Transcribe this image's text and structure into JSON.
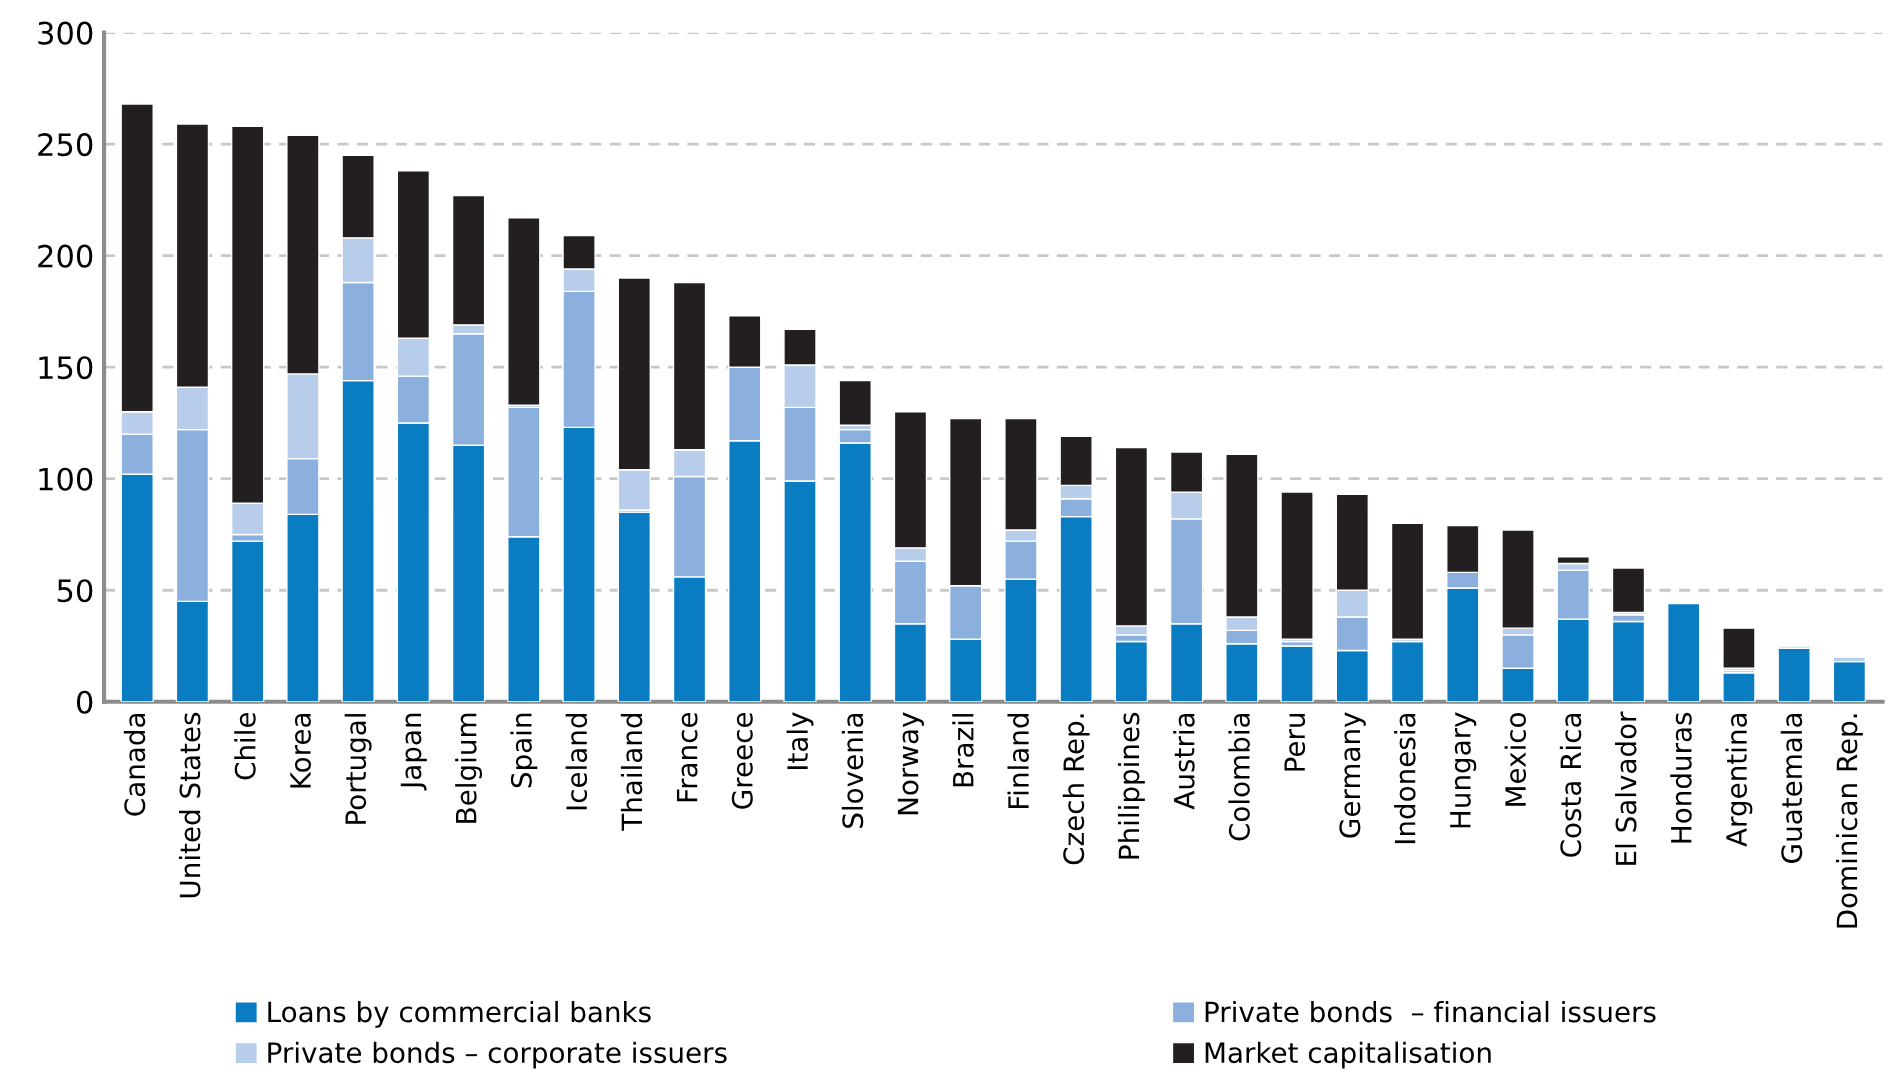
{
  "chart_data": {
    "type": "bar",
    "stacked": true,
    "categories": [
      "Canada",
      "United States",
      "Chile",
      "Korea",
      "Portugal",
      "Japan",
      "Belgium",
      "Spain",
      "Iceland",
      "Thailand",
      "France",
      "Greece",
      "Italy",
      "Slovenia",
      "Norway",
      "Brazil",
      "Finland",
      "Czech Rep.",
      "Philippines",
      "Austria",
      "Colombia",
      "Peru",
      "Germany",
      "Indonesia",
      "Hungary",
      "Mexico",
      "Costa Rica",
      "El Salvador",
      "Honduras",
      "Argentina",
      "Guatemala",
      "Dominican Rep."
    ],
    "series": [
      {
        "name": "Loans by commercial banks",
        "color": "#0a7dc2",
        "values": [
          102,
          45,
          72,
          84,
          144,
          125,
          115,
          74,
          123,
          85,
          56,
          117,
          99,
          116,
          35,
          28,
          55,
          83,
          27,
          35,
          26,
          25,
          23,
          27,
          51,
          15,
          37,
          36,
          44,
          13,
          24,
          18
        ]
      },
      {
        "name": "Private bonds  – financial issuers",
        "color": "#8cb0dd",
        "values": [
          18,
          77,
          3,
          25,
          44,
          21,
          50,
          58,
          61,
          1,
          45,
          33,
          33,
          6,
          28,
          24,
          17,
          8,
          3,
          47,
          6,
          2,
          15,
          0,
          7,
          15,
          22,
          3,
          0,
          1,
          0,
          0
        ]
      },
      {
        "name": "Private bonds – corporate issuers",
        "color": "#b8cdea",
        "values": [
          10,
          19,
          14,
          38,
          20,
          17,
          4,
          1,
          10,
          18,
          12,
          0,
          19,
          2,
          6,
          0,
          5,
          6,
          4,
          12,
          6,
          1,
          12,
          1,
          0,
          3,
          3,
          1,
          0,
          1,
          1,
          2
        ]
      },
      {
        "name": "Market capitalisation",
        "color": "#231f20",
        "values": [
          138,
          118,
          169,
          107,
          37,
          75,
          58,
          84,
          15,
          86,
          75,
          23,
          16,
          20,
          61,
          75,
          50,
          22,
          80,
          18,
          73,
          66,
          43,
          52,
          21,
          44,
          3,
          20,
          0,
          18,
          0,
          0
        ]
      }
    ],
    "ylim": [
      0,
      300
    ],
    "yticks": [
      0,
      50,
      100,
      150,
      200,
      250,
      300
    ],
    "grid": "y",
    "legend": "bottom"
  }
}
